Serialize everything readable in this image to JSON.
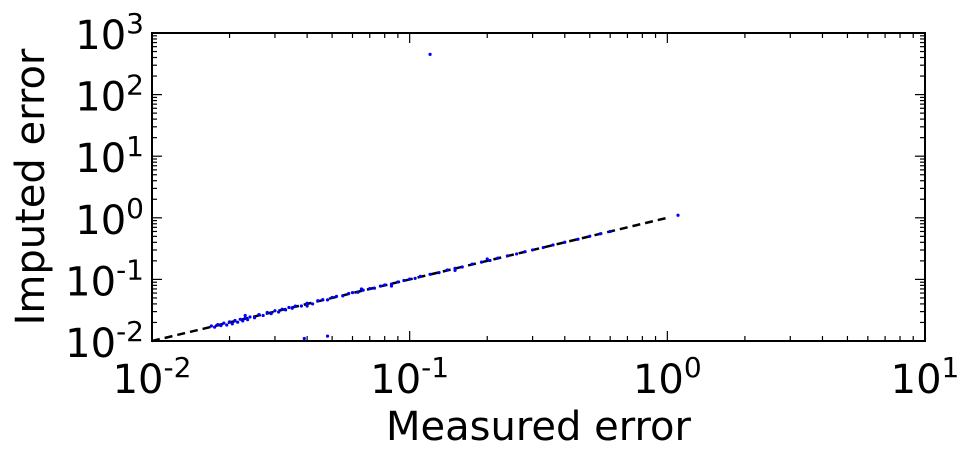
{
  "chart_data": {
    "type": "scatter",
    "title": "",
    "xlabel": "Measured error",
    "ylabel": "Imputed error",
    "xscale": "log",
    "yscale": "log",
    "xlim": [
      0.01,
      10
    ],
    "ylim": [
      0.01,
      1000
    ],
    "grid": false,
    "x_ticks": [
      {
        "base": "10",
        "exp": "-2",
        "value": 0.01
      },
      {
        "base": "10",
        "exp": "-1",
        "value": 0.1
      },
      {
        "base": "10",
        "exp": "0",
        "value": 1
      },
      {
        "base": "10",
        "exp": "1",
        "value": 10
      }
    ],
    "y_ticks": [
      {
        "base": "10",
        "exp": "-2",
        "value": 0.01
      },
      {
        "base": "10",
        "exp": "-1",
        "value": 0.1
      },
      {
        "base": "10",
        "exp": "0",
        "value": 1
      },
      {
        "base": "10",
        "exp": "1",
        "value": 10
      },
      {
        "base": "10",
        "exp": "2",
        "value": 100
      },
      {
        "base": "10",
        "exp": "3",
        "value": 1000
      }
    ],
    "reference_line": {
      "style": "dashed",
      "color": "#000000",
      "x": [
        0.01,
        1.0
      ],
      "y": [
        0.01,
        1.0
      ]
    },
    "series": [
      {
        "marker_color": "#0000ff",
        "points": [
          [
            0.017,
            0.0175
          ],
          [
            0.0175,
            0.0168
          ],
          [
            0.018,
            0.0185
          ],
          [
            0.0185,
            0.0178
          ],
          [
            0.019,
            0.0195
          ],
          [
            0.0195,
            0.0182
          ],
          [
            0.02,
            0.0205
          ],
          [
            0.0205,
            0.019
          ],
          [
            0.021,
            0.0215
          ],
          [
            0.0215,
            0.0202
          ],
          [
            0.022,
            0.0225
          ],
          [
            0.0225,
            0.0212
          ],
          [
            0.023,
            0.0235
          ],
          [
            0.0235,
            0.0222
          ],
          [
            0.024,
            0.0245
          ],
          [
            0.025,
            0.0238
          ],
          [
            0.026,
            0.0268
          ],
          [
            0.027,
            0.026
          ],
          [
            0.028,
            0.029
          ],
          [
            0.029,
            0.0278
          ],
          [
            0.03,
            0.031
          ],
          [
            0.031,
            0.0295
          ],
          [
            0.032,
            0.0328
          ],
          [
            0.033,
            0.032
          ],
          [
            0.034,
            0.035
          ],
          [
            0.035,
            0.034
          ],
          [
            0.036,
            0.0368
          ],
          [
            0.038,
            0.037
          ],
          [
            0.04,
            0.041
          ],
          [
            0.042,
            0.04
          ],
          [
            0.044,
            0.045
          ],
          [
            0.046,
            0.047
          ],
          [
            0.048,
            0.0465
          ],
          [
            0.05,
            0.051
          ],
          [
            0.052,
            0.053
          ],
          [
            0.055,
            0.054
          ],
          [
            0.058,
            0.059
          ],
          [
            0.06,
            0.061
          ],
          [
            0.063,
            0.062
          ],
          [
            0.066,
            0.067
          ],
          [
            0.07,
            0.071
          ],
          [
            0.073,
            0.072
          ],
          [
            0.077,
            0.078
          ],
          [
            0.08,
            0.081
          ],
          [
            0.085,
            0.084
          ],
          [
            0.09,
            0.091
          ],
          [
            0.095,
            0.096
          ],
          [
            0.1,
            0.101
          ],
          [
            0.105,
            0.104
          ],
          [
            0.11,
            0.112
          ],
          [
            0.12,
            0.121
          ],
          [
            0.13,
            0.129
          ],
          [
            0.14,
            0.142
          ],
          [
            0.15,
            0.151
          ],
          [
            0.16,
            0.159
          ],
          [
            0.175,
            0.177
          ],
          [
            0.19,
            0.191
          ],
          [
            0.205,
            0.203
          ],
          [
            0.22,
            0.222
          ],
          [
            0.24,
            0.241
          ],
          [
            0.26,
            0.259
          ],
          [
            0.28,
            0.282
          ],
          [
            0.3,
            0.301
          ],
          [
            0.33,
            0.329
          ],
          [
            0.36,
            0.362
          ],
          [
            0.4,
            0.401
          ],
          [
            0.45,
            0.449
          ],
          [
            0.5,
            0.502
          ],
          [
            0.55,
            0.551
          ],
          [
            0.6,
            0.6
          ],
          [
            1.1,
            1.1
          ],
          [
            0.12,
            450
          ],
          [
            0.039,
            0.011
          ],
          [
            0.048,
            0.012
          ],
          [
            0.023,
            0.026
          ],
          [
            0.04,
            0.037
          ],
          [
            0.065,
            0.07
          ],
          [
            0.085,
            0.078
          ],
          [
            0.15,
            0.14
          ],
          [
            0.2,
            0.215
          ]
        ]
      }
    ]
  }
}
